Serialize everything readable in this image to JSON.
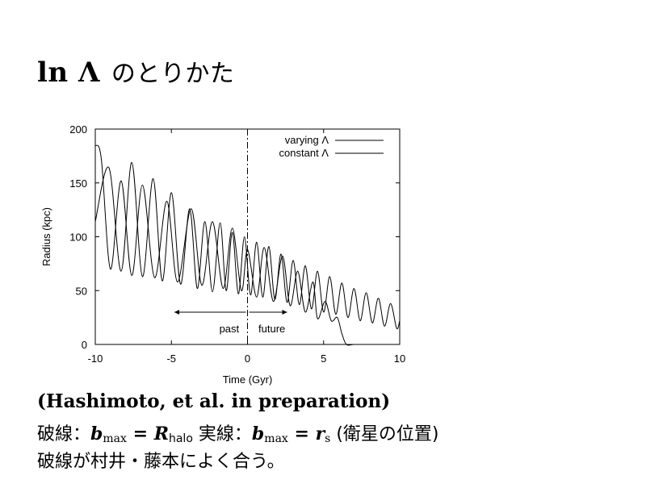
{
  "slide": {
    "title_math": "ln Λ",
    "title_text": "のとりかた"
  },
  "chart_data": {
    "type": "line",
    "xlabel": "Time (Gyr)",
    "ylabel": "Radius (kpc)",
    "xlim": [
      -10,
      10
    ],
    "ylim": [
      0,
      200
    ],
    "xticks": [
      "-10",
      "-5",
      "0",
      "5",
      "10"
    ],
    "yticks": [
      "0",
      "50",
      "100",
      "150",
      "200"
    ],
    "legend_position": "top-right",
    "series": [
      {
        "name": "varying Λ",
        "x": [
          -10.0,
          -9.1,
          -8.3,
          -7.6,
          -6.9,
          -6.2,
          -5.6,
          -5.0,
          -4.4,
          -3.8,
          -3.3,
          -2.8,
          -2.3,
          -1.8,
          -1.4,
          -1.0,
          -0.6,
          -0.2,
          0.2,
          0.6,
          1.0,
          1.4,
          1.8,
          2.2,
          2.6,
          3.0,
          3.4,
          3.8,
          4.2,
          4.6,
          5.0,
          5.4,
          5.8,
          6.2,
          6.6,
          7.0,
          7.4,
          7.8,
          8.2,
          8.6,
          9.0,
          9.4,
          9.8,
          10.0
        ],
        "y": [
          114,
          164,
          68,
          169,
          63,
          154,
          59,
          141,
          56,
          126,
          52,
          114,
          49,
          113,
          50,
          104,
          47,
          100,
          46,
          95,
          44,
          91,
          42,
          84,
          39,
          78,
          37,
          73,
          33,
          68,
          30,
          63,
          28,
          57,
          25,
          52,
          22,
          48,
          20,
          43,
          17,
          38,
          15,
          22
        ]
      },
      {
        "name": "constant Λ",
        "x": [
          -10.0,
          -9.6,
          -9.0,
          -8.3,
          -7.6,
          -6.9,
          -6.1,
          -5.3,
          -4.6,
          -3.7,
          -3.0,
          -2.3,
          -1.6,
          -1.0,
          -0.4,
          0.0,
          0.6,
          1.1,
          1.7,
          2.3,
          2.8,
          3.3,
          3.8,
          4.3,
          4.6,
          5.1,
          5.5,
          5.9,
          6.2,
          6.5,
          7.0,
          8.0,
          9.0
        ],
        "y": [
          185,
          172,
          70,
          152,
          64,
          148,
          62,
          133,
          58,
          126,
          55,
          114,
          52,
          108,
          50,
          88,
          44,
          90,
          40,
          82,
          36,
          68,
          30,
          58,
          24,
          40,
          22,
          25,
          10,
          0,
          0,
          0,
          0
        ]
      }
    ],
    "annotations": [
      {
        "text": "past",
        "x": -1.2,
        "y": 15
      },
      {
        "text": "future",
        "x": 1.6,
        "y": 15
      }
    ],
    "vertical_line_x": 0
  },
  "captions": {
    "citation": "(Hashimoto, et al. in preparation)",
    "dashed_label": "破線：",
    "dashed_math": "b",
    "dashed_sub": "max",
    "dashed_eq": " = R",
    "dashed_sub2": "halo",
    "solid_label": " 実線：",
    "solid_math": "b",
    "solid_sub": "max",
    "solid_eq": " = r",
    "solid_sub2": "s",
    "solid_note": " (衛星の位置)",
    "conclusion": "破線が村井・藤本によく合う。"
  }
}
